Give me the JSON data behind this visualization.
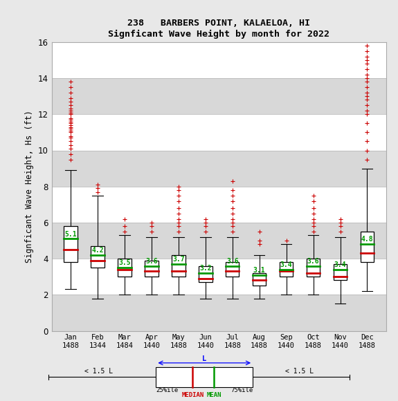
{
  "title1": "238   BARBERS POINT, KALAELOA, HI",
  "title2": "Signficant Wave Height by month for 2022",
  "ylabel": "Signficant Wave Height, Hs (ft)",
  "months": [
    "Jan",
    "Feb",
    "Mar",
    "Apr",
    "May",
    "Jun",
    "Jul",
    "Aug",
    "Sep",
    "Oct",
    "Nov",
    "Dec"
  ],
  "counts": [
    "1488",
    "1344",
    "1484",
    "1440",
    "1488",
    "1440",
    "1488",
    "1488",
    "1440",
    "1488",
    "1440",
    "1488"
  ],
  "ylim": [
    0,
    16
  ],
  "yticks": [
    0,
    2,
    4,
    6,
    8,
    10,
    12,
    14,
    16
  ],
  "box_data": {
    "Jan": {
      "q1": 3.8,
      "median": 4.5,
      "mean": 5.1,
      "q3": 5.8,
      "whislo": 2.3,
      "whishi": 8.9,
      "fliers_above": [
        9.5,
        9.8,
        10.1,
        10.3,
        10.5,
        10.7,
        10.8,
        11.0,
        11.1,
        11.2,
        11.3,
        11.4,
        11.5,
        11.6,
        11.7,
        11.8,
        12.0,
        12.1,
        12.2,
        12.3,
        12.5,
        12.7,
        12.9,
        13.2,
        13.5,
        13.8
      ],
      "fliers_below": []
    },
    "Feb": {
      "q1": 3.5,
      "median": 3.9,
      "mean": 4.2,
      "q3": 4.7,
      "whislo": 1.8,
      "whishi": 7.5,
      "fliers_above": [
        7.7,
        7.9,
        8.1
      ],
      "fliers_below": []
    },
    "Mar": {
      "q1": 3.0,
      "median": 3.4,
      "mean": 3.5,
      "q3": 4.0,
      "whislo": 2.0,
      "whishi": 5.3,
      "fliers_above": [
        5.5,
        5.8,
        6.2
      ],
      "fliers_below": []
    },
    "Apr": {
      "q1": 3.0,
      "median": 3.3,
      "mean": 3.6,
      "q3": 3.9,
      "whislo": 2.0,
      "whishi": 5.2,
      "fliers_above": [
        5.5,
        5.8,
        6.0
      ],
      "fliers_below": []
    },
    "May": {
      "q1": 3.0,
      "median": 3.3,
      "mean": 3.7,
      "q3": 4.2,
      "whislo": 2.0,
      "whishi": 5.2,
      "fliers_above": [
        5.5,
        5.8,
        6.0,
        6.2,
        6.5,
        6.8,
        7.2,
        7.5,
        7.8,
        8.0
      ],
      "fliers_below": []
    },
    "Jun": {
      "q1": 2.7,
      "median": 2.9,
      "mean": 3.2,
      "q3": 3.6,
      "whislo": 1.8,
      "whishi": 5.2,
      "fliers_above": [
        5.5,
        5.8,
        6.0,
        6.2
      ],
      "fliers_below": []
    },
    "Jul": {
      "q1": 3.0,
      "median": 3.3,
      "mean": 3.6,
      "q3": 3.8,
      "whislo": 1.8,
      "whishi": 5.2,
      "fliers_above": [
        5.5,
        5.8,
        6.0,
        6.2,
        6.5,
        6.8,
        7.2,
        7.5,
        7.8,
        8.3
      ],
      "fliers_below": []
    },
    "Aug": {
      "q1": 2.5,
      "median": 2.8,
      "mean": 3.1,
      "q3": 3.2,
      "whislo": 1.8,
      "whishi": 4.2,
      "fliers_above": [
        4.8,
        5.0,
        5.5
      ],
      "fliers_below": []
    },
    "Sep": {
      "q1": 3.0,
      "median": 3.3,
      "mean": 3.4,
      "q3": 3.8,
      "whislo": 2.0,
      "whishi": 4.8,
      "fliers_above": [
        5.0
      ],
      "fliers_below": []
    },
    "Oct": {
      "q1": 3.0,
      "median": 3.2,
      "mean": 3.6,
      "q3": 4.0,
      "whislo": 2.0,
      "whishi": 5.3,
      "fliers_above": [
        5.5,
        5.8,
        6.0,
        6.2,
        6.5,
        6.8,
        7.2,
        7.5
      ],
      "fliers_below": []
    },
    "Nov": {
      "q1": 2.8,
      "median": 3.0,
      "mean": 3.4,
      "q3": 3.7,
      "whislo": 1.5,
      "whishi": 5.2,
      "fliers_above": [
        5.5,
        5.8,
        6.0,
        6.2
      ],
      "fliers_below": []
    },
    "Dec": {
      "q1": 3.8,
      "median": 4.3,
      "mean": 4.8,
      "q3": 5.5,
      "whislo": 2.2,
      "whishi": 9.0,
      "fliers_above": [
        9.5,
        10.0,
        10.5,
        11.0,
        11.5,
        12.0,
        12.2,
        12.5,
        12.8,
        13.0,
        13.2,
        13.5,
        13.8,
        14.0,
        14.2,
        14.5,
        14.8,
        15.0,
        15.2,
        15.5,
        15.8
      ],
      "fliers_below": []
    }
  },
  "box_color": "#ffffff",
  "box_edge_color": "#000000",
  "median_color": "#cc0000",
  "mean_color": "#009900",
  "whisker_color": "#000000",
  "flier_color": "#cc0000",
  "background_color": "#e8e8e8",
  "plot_bg_color": "#ffffff",
  "band_color": "#d8d8d8",
  "grid_color": "#bbbbbb"
}
